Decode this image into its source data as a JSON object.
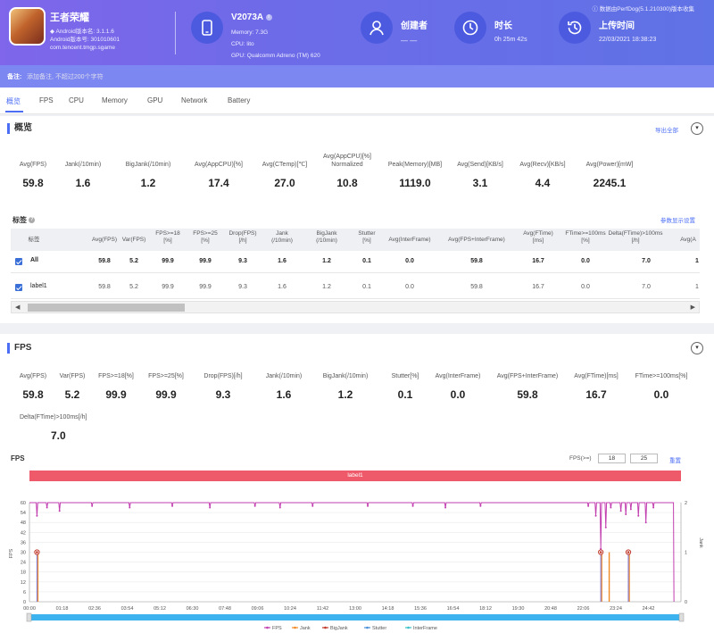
{
  "app": {
    "name": "王者荣耀",
    "version": "Android版本名: 3.1.1.6",
    "version_code": "Android版本号: 301010601",
    "package": "com.tencent.tmgp.sgame"
  },
  "device": {
    "name": "V2073A",
    "memory": "Memory: 7.3G",
    "cpu": "CPU: lito",
    "gpu": "GPU: Qualcomm Adreno (TM) 620"
  },
  "creator": {
    "label": "创建者",
    "value": "— —"
  },
  "duration": {
    "label": "时长",
    "value": "0h 25m 42s"
  },
  "upload": {
    "label": "上传时间",
    "value": "22/03/2021 18:38:23"
  },
  "collect_note": "ⓘ 数据由PerfDog(5.1.210300)版本收集",
  "note": {
    "label": "备注:",
    "placeholder": "添加备注, 不超过200个字符"
  },
  "tabs": [
    "概览",
    "FPS",
    "CPU",
    "Memory",
    "GPU",
    "Network",
    "Battery"
  ],
  "overview": {
    "title": "概览",
    "export": "导出全部",
    "metrics": [
      {
        "label": "Avg(FPS)",
        "value": "59.8"
      },
      {
        "label": "Jank(/10min)",
        "value": "1.6"
      },
      {
        "label": "BigJank(/10min)",
        "value": "1.2"
      },
      {
        "label": "Avg(AppCPU)[%]",
        "value": "17.4"
      },
      {
        "label": "Avg(CTemp)[℃]",
        "value": "27.0"
      },
      {
        "label": "Avg(AppCPU)[%]",
        "label2": "Normalized",
        "value": "10.8"
      },
      {
        "label": "Peak(Memory)[MB]",
        "value": "1119.0"
      },
      {
        "label": "Avg(Send)[KB/s]",
        "value": "3.1"
      },
      {
        "label": "Avg(Recv)[KB/s]",
        "value": "4.4"
      },
      {
        "label": "Avg(Power)[mW]",
        "value": "2245.1"
      }
    ]
  },
  "labels": {
    "title": "标签",
    "settings": "参数显示设置",
    "headers": [
      "标签",
      "Avg(FPS)",
      "Var(FPS)",
      "FPS>=18\n[%]",
      "FPS>=25\n[%]",
      "Drop(FPS)\n[/h]",
      "Jank\n(/10min)",
      "BigJank\n(/10min)",
      "Stutter\n[%]",
      "Avg(InterFrame)",
      "Avg(FPS+InterFrame)",
      "Avg(FTime)\n[ms]",
      "FTime>=100ms\n[%]",
      "Delta(FTime)>100ms\n[/h]",
      "Avg(A"
    ],
    "rows": [
      {
        "name": "All",
        "cells": [
          "59.8",
          "5.2",
          "99.9",
          "99.9",
          "9.3",
          "1.6",
          "1.2",
          "0.1",
          "0.0",
          "59.8",
          "16.7",
          "0.0",
          "7.0",
          "1"
        ]
      },
      {
        "name": "label1",
        "cells": [
          "59.8",
          "5.2",
          "99.9",
          "99.9",
          "9.3",
          "1.6",
          "1.2",
          "0.1",
          "0.0",
          "59.8",
          "16.7",
          "0.0",
          "7.0",
          "1"
        ]
      }
    ]
  },
  "fps_section": {
    "title": "FPS",
    "metrics": [
      {
        "label": "Avg(FPS)",
        "value": "59.8"
      },
      {
        "label": "Var(FPS)",
        "value": "5.2"
      },
      {
        "label": "FPS>=18[%]",
        "value": "99.9"
      },
      {
        "label": "FPS>=25[%]",
        "value": "99.9"
      },
      {
        "label": "Drop(FPS)[/h]",
        "value": "9.3"
      },
      {
        "label": "Jank(/10min)",
        "value": "1.6"
      },
      {
        "label": "BigJank(/10min)",
        "value": "1.2"
      },
      {
        "label": "Stutter[%]",
        "value": "0.1"
      },
      {
        "label": "Avg(InterFrame)",
        "value": "0.0"
      },
      {
        "label": "Avg(FPS+InterFrame)",
        "value": "59.8"
      },
      {
        "label": "Avg(FTime)[ms]",
        "value": "16.7"
      },
      {
        "label": "FTime>=100ms[%]",
        "value": "0.0"
      }
    ],
    "metric_extra": {
      "label": "Delta(FTime)>100ms[/h]",
      "value": "7.0"
    },
    "chart_title": "FPS",
    "fps_filter_label": "FPS(>=)",
    "fps_a": "18",
    "fps_b": "25",
    "reset": "重置",
    "label_bar": "label1"
  },
  "chart_data": {
    "type": "line",
    "xlabel": "",
    "ylabel": "FPS",
    "y2label": "Jank",
    "ylim": [
      0,
      60
    ],
    "y2lim": [
      0,
      2
    ],
    "yticks": [
      "60",
      "54",
      "48",
      "42",
      "36",
      "30",
      "24",
      "18",
      "12",
      "6",
      "0"
    ],
    "y2ticks": [
      "2",
      "1",
      "0"
    ],
    "xticks": [
      "00:00",
      "01:18",
      "02:36",
      "03:54",
      "05:12",
      "06:30",
      "07:48",
      "09:06",
      "10:24",
      "11:42",
      "13:00",
      "14:18",
      "15:36",
      "16:54",
      "18:12",
      "19:30",
      "20:48",
      "22:06",
      "23:24",
      "24:42"
    ],
    "series": [
      {
        "name": "FPS",
        "color": "#c23fb0",
        "baseline": 60,
        "dips": [
          [
            0.3,
            52
          ],
          [
            0.7,
            57
          ],
          [
            1.2,
            55
          ],
          [
            2.5,
            58
          ],
          [
            4.0,
            57
          ],
          [
            5.7,
            58
          ],
          [
            7.2,
            57
          ],
          [
            9.0,
            58
          ],
          [
            10.0,
            57
          ],
          [
            11.3,
            58
          ],
          [
            13.5,
            58
          ],
          [
            15.3,
            58
          ],
          [
            16.6,
            57
          ],
          [
            18.0,
            58
          ],
          [
            22.3,
            58
          ],
          [
            22.6,
            52
          ],
          [
            22.8,
            32
          ],
          [
            23.0,
            45
          ],
          [
            23.2,
            57
          ],
          [
            23.6,
            55
          ],
          [
            23.8,
            53
          ],
          [
            24.0,
            56
          ],
          [
            24.3,
            52
          ],
          [
            24.6,
            48
          ],
          [
            24.9,
            57
          ]
        ]
      },
      {
        "name": "Jank",
        "color": "#f08a24",
        "points": [
          [
            0.3,
            1
          ],
          [
            22.8,
            1
          ],
          [
            23.1,
            1
          ],
          [
            23.9,
            1
          ]
        ]
      },
      {
        "name": "BigJank",
        "color": "#c0392b",
        "points": [
          [
            0.3,
            1
          ],
          [
            22.8,
            1
          ],
          [
            23.9,
            1
          ]
        ]
      },
      {
        "name": "Stutter",
        "color": "#4a90d9",
        "points": []
      },
      {
        "name": "InterFrame",
        "color": "#3bc0c8",
        "points": []
      }
    ]
  }
}
